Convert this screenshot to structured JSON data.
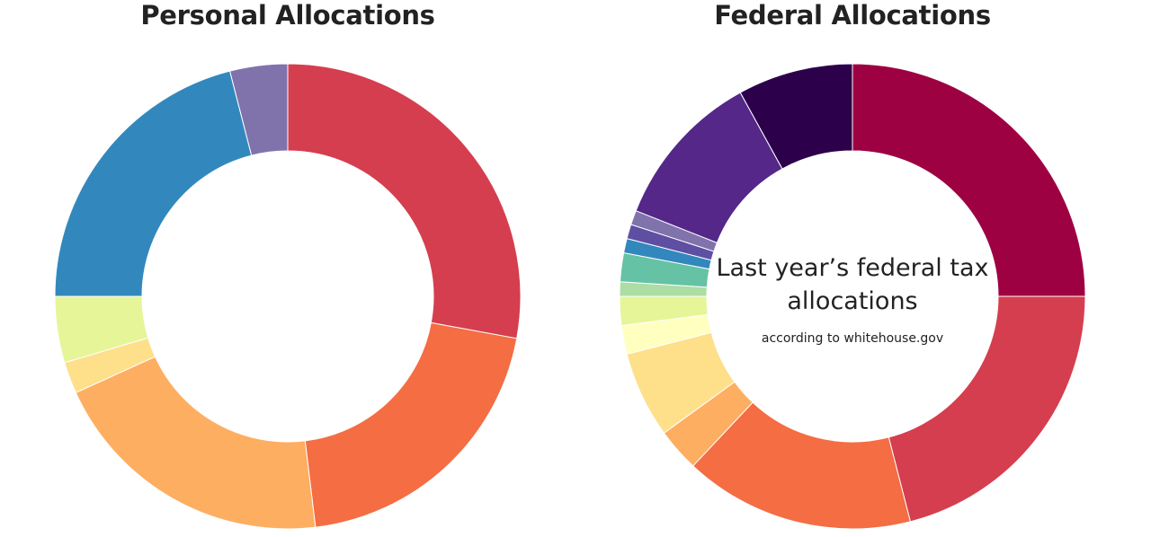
{
  "chart_data": [
    {
      "type": "pie",
      "donut": true,
      "title": "Personal Allocations",
      "slices": [
        {
          "value": 27.9,
          "color": "#d53e4f"
        },
        {
          "value": 20.2,
          "color": "#f46d43"
        },
        {
          "value": 20.1,
          "color": "#fdae61"
        },
        {
          "value": 2.2,
          "color": "#fee08b"
        },
        {
          "value": 4.6,
          "color": "#e6f598"
        },
        {
          "value": 21.0,
          "color": "#3288bd"
        },
        {
          "value": 4.0,
          "color": "#8073ac"
        }
      ]
    },
    {
      "type": "pie",
      "donut": true,
      "title": "Federal Allocations",
      "center_title": "Last year’s federal tax allocations",
      "center_subtitle": "according to whitehouse.gov",
      "slices": [
        {
          "value": 25.0,
          "color": "#9e0142"
        },
        {
          "value": 21.0,
          "color": "#d53e4f"
        },
        {
          "value": 16.0,
          "color": "#f46d43"
        },
        {
          "value": 3.0,
          "color": "#fdae61"
        },
        {
          "value": 6.0,
          "color": "#fee08b"
        },
        {
          "value": 2.0,
          "color": "#ffffbf"
        },
        {
          "value": 2.0,
          "color": "#e6f598"
        },
        {
          "value": 1.0,
          "color": "#abdda4"
        },
        {
          "value": 2.0,
          "color": "#66c2a5"
        },
        {
          "value": 1.0,
          "color": "#3288bd"
        },
        {
          "value": 1.0,
          "color": "#5e4fa2"
        },
        {
          "value": 1.0,
          "color": "#8073ac"
        },
        {
          "value": 11.0,
          "color": "#542788"
        },
        {
          "value": 8.0,
          "color": "#2d004b"
        }
      ]
    }
  ]
}
